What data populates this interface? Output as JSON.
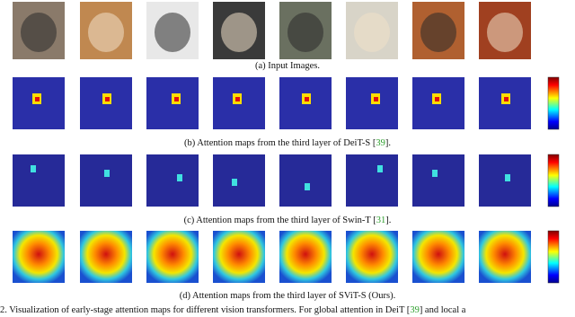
{
  "figure": {
    "panels": [
      {
        "before": "(a) Input Images."
      },
      {
        "before": "(b) Attention maps from the third layer of DeiT-S [",
        "cite": "39",
        "after": "]."
      },
      {
        "before": "(c) Attention maps from the third layer of Swin-T [",
        "cite": "31",
        "after": "]."
      },
      {
        "before": "(d) Attention maps from the third layer of SViT-S (Ours)."
      }
    ],
    "caption": {
      "before": "2.  Visualization of early-stage attention maps for different vision transformers.  For global attention in DeiT [",
      "cite": "39",
      "after": "] and local a"
    }
  }
}
